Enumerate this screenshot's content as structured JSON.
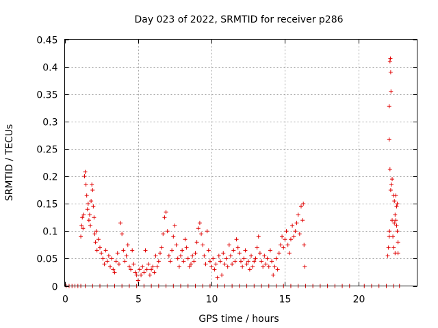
{
  "chart_data": {
    "type": "scatter",
    "title": "Day 023 of 2022, SRMTID for receiver p286",
    "xlabel": "GPS time / hours",
    "ylabel": "SRMTID / TECUs",
    "xlim": [
      0,
      24
    ],
    "ylim": [
      0,
      0.45
    ],
    "x_ticks": [
      0,
      5,
      10,
      15,
      20
    ],
    "x_tick_labels": [
      "0",
      "5",
      "10",
      "15",
      "20"
    ],
    "y_ticks": [
      0,
      0.05,
      0.1,
      0.15,
      0.2,
      0.25,
      0.3,
      0.35,
      0.4,
      0.45
    ],
    "y_tick_labels": [
      "0",
      "0.05",
      "0.1",
      "0.15",
      "0.2",
      "0.25",
      "0.3",
      "0.35",
      "0.4",
      "0.45"
    ],
    "grid": true,
    "marker": "+",
    "color": "#e00000",
    "series": [
      {
        "name": "SRMTID",
        "points": [
          [
            0.1,
            0
          ],
          [
            0.3,
            0
          ],
          [
            0.5,
            0
          ],
          [
            0.7,
            0
          ],
          [
            0.9,
            0
          ],
          [
            1.1,
            0
          ],
          [
            1.4,
            0
          ],
          [
            1.9,
            0
          ],
          [
            2.4,
            0
          ],
          [
            2.9,
            0
          ],
          [
            3.4,
            0
          ],
          [
            3.9,
            0
          ],
          [
            4.4,
            0
          ],
          [
            4.9,
            0
          ],
          [
            5.4,
            0
          ],
          [
            5.9,
            0
          ],
          [
            6.4,
            0
          ],
          [
            6.9,
            0
          ],
          [
            7.4,
            0
          ],
          [
            7.9,
            0
          ],
          [
            8.4,
            0
          ],
          [
            8.9,
            0
          ],
          [
            9.4,
            0
          ],
          [
            9.9,
            0
          ],
          [
            10.4,
            0
          ],
          [
            10.9,
            0
          ],
          [
            11.4,
            0
          ],
          [
            11.9,
            0
          ],
          [
            12.4,
            0
          ],
          [
            12.9,
            0
          ],
          [
            13.4,
            0
          ],
          [
            13.9,
            0
          ],
          [
            14.4,
            0
          ],
          [
            14.9,
            0
          ],
          [
            15.4,
            0
          ],
          [
            15.9,
            0
          ],
          [
            16.4,
            0
          ],
          [
            16.9,
            0
          ],
          [
            17.4,
            0
          ],
          [
            17.9,
            0
          ],
          [
            18.4,
            0
          ],
          [
            18.9,
            0
          ],
          [
            19.4,
            0
          ],
          [
            20.4,
            0
          ],
          [
            20.9,
            0
          ],
          [
            21.4,
            0
          ],
          [
            21.9,
            0
          ],
          [
            22.4,
            0
          ],
          [
            22.8,
            0
          ],
          [
            1.1,
            0.09
          ],
          [
            1.15,
            0.11
          ],
          [
            1.2,
            0.125
          ],
          [
            1.25,
            0.105
          ],
          [
            1.3,
            0.13
          ],
          [
            1.35,
            0.2
          ],
          [
            1.4,
            0.208
          ],
          [
            1.45,
            0.185
          ],
          [
            1.5,
            0.165
          ],
          [
            1.55,
            0.14
          ],
          [
            1.6,
            0.15
          ],
          [
            1.65,
            0.12
          ],
          [
            1.7,
            0.13
          ],
          [
            1.75,
            0.11
          ],
          [
            1.8,
            0.155
          ],
          [
            1.85,
            0.185
          ],
          [
            1.9,
            0.175
          ],
          [
            1.95,
            0.145
          ],
          [
            2.0,
            0.125
          ],
          [
            2.05,
            0.095
          ],
          [
            2.1,
            0.08
          ],
          [
            2.15,
            0.1
          ],
          [
            2.2,
            0.065
          ],
          [
            2.3,
            0.085
          ],
          [
            2.4,
            0.07
          ],
          [
            2.5,
            0.06
          ],
          [
            2.6,
            0.05
          ],
          [
            2.7,
            0.04
          ],
          [
            2.8,
            0.065
          ],
          [
            2.9,
            0.045
          ],
          [
            3.0,
            0.055
          ],
          [
            3.1,
            0.035
          ],
          [
            3.2,
            0.05
          ],
          [
            3.3,
            0.03
          ],
          [
            3.4,
            0.025
          ],
          [
            3.5,
            0.045
          ],
          [
            3.6,
            0.06
          ],
          [
            3.7,
            0.04
          ],
          [
            3.8,
            0.115
          ],
          [
            3.9,
            0.095
          ],
          [
            4.0,
            0.065
          ],
          [
            4.1,
            0.045
          ],
          [
            4.2,
            0.055
          ],
          [
            4.3,
            0.075
          ],
          [
            4.4,
            0.035
          ],
          [
            4.5,
            0.03
          ],
          [
            4.6,
            0.065
          ],
          [
            4.7,
            0.04
          ],
          [
            4.8,
            0.025
          ],
          [
            4.9,
            0.02
          ],
          [
            5.0,
            0.01
          ],
          [
            5.1,
            0.03
          ],
          [
            5.2,
            0.02
          ],
          [
            5.3,
            0.035
          ],
          [
            5.4,
            0.025
          ],
          [
            5.5,
            0.065
          ],
          [
            5.6,
            0.03
          ],
          [
            5.7,
            0.04
          ],
          [
            5.8,
            0.02
          ],
          [
            5.9,
            0.03
          ],
          [
            6.0,
            0.035
          ],
          [
            6.1,
            0.025
          ],
          [
            6.2,
            0.055
          ],
          [
            6.3,
            0.035
          ],
          [
            6.4,
            0.045
          ],
          [
            6.5,
            0.06
          ],
          [
            6.6,
            0.07
          ],
          [
            6.7,
            0.095
          ],
          [
            6.8,
            0.125
          ],
          [
            6.9,
            0.135
          ],
          [
            7.0,
            0.1
          ],
          [
            7.1,
            0.055
          ],
          [
            7.2,
            0.045
          ],
          [
            7.3,
            0.065
          ],
          [
            7.4,
            0.09
          ],
          [
            7.5,
            0.11
          ],
          [
            7.6,
            0.075
          ],
          [
            7.7,
            0.05
          ],
          [
            7.8,
            0.035
          ],
          [
            7.9,
            0.055
          ],
          [
            8.0,
            0.065
          ],
          [
            8.1,
            0.045
          ],
          [
            8.2,
            0.085
          ],
          [
            8.3,
            0.07
          ],
          [
            8.4,
            0.05
          ],
          [
            8.5,
            0.035
          ],
          [
            8.6,
            0.04
          ],
          [
            8.7,
            0.055
          ],
          [
            8.8,
            0.045
          ],
          [
            8.9,
            0.06
          ],
          [
            9.0,
            0.08
          ],
          [
            9.1,
            0.105
          ],
          [
            9.2,
            0.115
          ],
          [
            9.3,
            0.095
          ],
          [
            9.4,
            0.075
          ],
          [
            9.5,
            0.055
          ],
          [
            9.6,
            0.04
          ],
          [
            9.7,
            0.1
          ],
          [
            9.8,
            0.065
          ],
          [
            9.9,
            0.045
          ],
          [
            10.0,
            0.035
          ],
          [
            10.1,
            0.05
          ],
          [
            10.2,
            0.03
          ],
          [
            10.3,
            0.04
          ],
          [
            10.4,
            0.015
          ],
          [
            10.5,
            0.055
          ],
          [
            10.6,
            0.045
          ],
          [
            10.7,
            0.02
          ],
          [
            10.8,
            0.06
          ],
          [
            10.9,
            0.04
          ],
          [
            11.0,
            0.05
          ],
          [
            11.1,
            0.035
          ],
          [
            11.2,
            0.075
          ],
          [
            11.3,
            0.055
          ],
          [
            11.4,
            0.04
          ],
          [
            11.5,
            0.065
          ],
          [
            11.6,
            0.045
          ],
          [
            11.7,
            0.085
          ],
          [
            11.8,
            0.07
          ],
          [
            11.9,
            0.06
          ],
          [
            12.0,
            0.045
          ],
          [
            12.1,
            0.035
          ],
          [
            12.2,
            0.05
          ],
          [
            12.3,
            0.065
          ],
          [
            12.4,
            0.04
          ],
          [
            12.5,
            0.045
          ],
          [
            12.6,
            0.03
          ],
          [
            12.7,
            0.055
          ],
          [
            12.8,
            0.035
          ],
          [
            12.9,
            0.045
          ],
          [
            13.0,
            0.05
          ],
          [
            13.1,
            0.07
          ],
          [
            13.2,
            0.09
          ],
          [
            13.3,
            0.06
          ],
          [
            13.4,
            0.045
          ],
          [
            13.5,
            0.035
          ],
          [
            13.6,
            0.055
          ],
          [
            13.7,
            0.04
          ],
          [
            13.8,
            0.05
          ],
          [
            13.9,
            0.035
          ],
          [
            14.0,
            0.065
          ],
          [
            14.1,
            0.045
          ],
          [
            14.2,
            0.02
          ],
          [
            14.3,
            0.035
          ],
          [
            14.4,
            0.05
          ],
          [
            14.5,
            0.03
          ],
          [
            14.6,
            0.06
          ],
          [
            14.7,
            0.075
          ],
          [
            14.8,
            0.09
          ],
          [
            14.9,
            0.07
          ],
          [
            15.0,
            0.085
          ],
          [
            15.1,
            0.1
          ],
          [
            15.2,
            0.075
          ],
          [
            15.3,
            0.06
          ],
          [
            15.4,
            0.085
          ],
          [
            15.5,
            0.11
          ],
          [
            15.6,
            0.09
          ],
          [
            15.7,
            0.1
          ],
          [
            15.8,
            0.115
          ],
          [
            15.9,
            0.13
          ],
          [
            16.0,
            0.095
          ],
          [
            16.1,
            0.145
          ],
          [
            16.2,
            0.12
          ],
          [
            16.25,
            0.15
          ],
          [
            16.3,
            0.075
          ],
          [
            16.35,
            0.035
          ],
          [
            22.0,
            0.055
          ],
          [
            22.05,
            0.07
          ],
          [
            22.1,
            0.09
          ],
          [
            22.12,
            0.1
          ],
          [
            22.15,
            0.41
          ],
          [
            22.18,
            0.415
          ],
          [
            22.2,
            0.39
          ],
          [
            22.22,
            0.355
          ],
          [
            22.1,
            0.328
          ],
          [
            22.1,
            0.267
          ],
          [
            22.15,
            0.213
          ],
          [
            22.3,
            0.195
          ],
          [
            22.25,
            0.185
          ],
          [
            22.2,
            0.175
          ],
          [
            22.4,
            0.165
          ],
          [
            22.45,
            0.155
          ],
          [
            22.5,
            0.13
          ],
          [
            22.55,
            0.12
          ],
          [
            22.6,
            0.11
          ],
          [
            22.65,
            0.1
          ],
          [
            22.7,
            0.08
          ],
          [
            22.4,
            0.07
          ],
          [
            22.5,
            0.06
          ],
          [
            22.6,
            0.145
          ],
          [
            22.35,
            0.09
          ],
          [
            22.45,
            0.115
          ],
          [
            22.55,
            0.165
          ],
          [
            22.65,
            0.15
          ],
          [
            22.7,
            0.06
          ],
          [
            22.3,
            0.12
          ]
        ]
      }
    ]
  }
}
